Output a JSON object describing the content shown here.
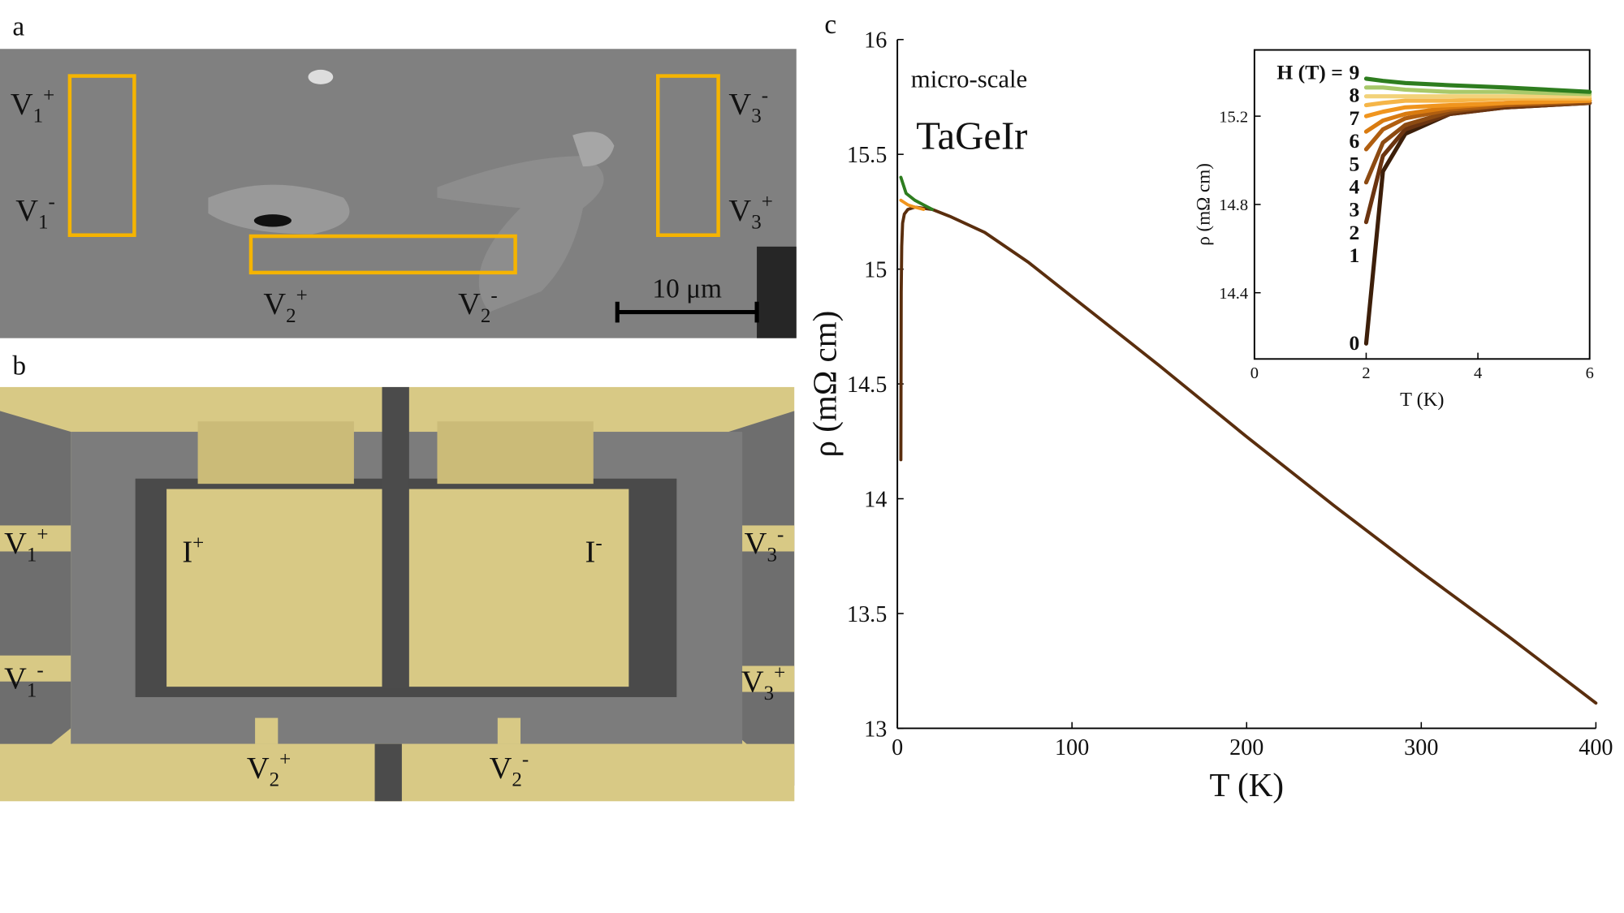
{
  "panels": {
    "a": {
      "label": "a",
      "scale_bar": "10 μm",
      "labels": [
        {
          "text": "V",
          "sub": "1",
          "sup": "+"
        },
        {
          "text": "V",
          "sub": "1",
          "sup": "-"
        },
        {
          "text": "V",
          "sub": "3",
          "sup": "-"
        },
        {
          "text": "V",
          "sub": "3",
          "sup": "+"
        },
        {
          "text": "V",
          "sub": "2",
          "sup": "+"
        },
        {
          "text": "V",
          "sub": "2",
          "sup": "-"
        }
      ]
    },
    "b": {
      "label": "b",
      "labels": [
        {
          "text": "V",
          "sub": "1",
          "sup": "+"
        },
        {
          "text": "I",
          "sup": "+"
        },
        {
          "text": "I",
          "sup": "-"
        },
        {
          "text": "V",
          "sub": "3",
          "sup": "-"
        },
        {
          "text": "V",
          "sub": "1",
          "sup": "-"
        },
        {
          "text": "V",
          "sub": "3",
          "sup": "+"
        },
        {
          "text": "V",
          "sub": "2",
          "sup": "+"
        },
        {
          "text": "V",
          "sub": "2",
          "sup": "-"
        }
      ]
    }
  },
  "chart_data": [
    {
      "type": "line",
      "panel_label": "c",
      "xlabel": "T (K)",
      "ylabel": "ρ (mΩ cm)",
      "annotations": [
        "micro-scale",
        "TaGeIr"
      ],
      "xlim": [
        0,
        400
      ],
      "ylim": [
        13,
        16
      ],
      "xticks": [
        0,
        100,
        200,
        300,
        400
      ],
      "yticks": [
        13,
        13.5,
        14,
        14.5,
        15,
        15.5,
        16
      ],
      "series": [
        {
          "color": "#5a2e0e",
          "x": [
            2,
            2.2,
            2.5,
            3,
            4,
            6,
            10,
            20,
            30,
            50,
            75,
            100,
            150,
            200,
            250,
            300,
            350,
            400
          ],
          "values": [
            14.17,
            14.9,
            15.1,
            15.2,
            15.24,
            15.26,
            15.27,
            15.26,
            15.23,
            15.16,
            15.03,
            14.88,
            14.58,
            14.27,
            13.97,
            13.68,
            13.4,
            13.11
          ]
        },
        {
          "color": "#f0951e",
          "x": [
            2,
            4,
            6,
            10,
            15
          ],
          "values": [
            15.3,
            15.29,
            15.28,
            15.27,
            15.26
          ]
        },
        {
          "color": "#2e7d1f",
          "x": [
            2,
            5,
            10,
            15,
            20
          ],
          "values": [
            15.4,
            15.33,
            15.3,
            15.28,
            15.26
          ]
        }
      ]
    },
    {
      "type": "line",
      "xlabel": "T (K)",
      "ylabel": "ρ (mΩ cm)",
      "legend_title": "H (T) =",
      "xlim": [
        0,
        6
      ],
      "ylim": [
        14.1,
        15.5
      ],
      "xticks": [
        0,
        2,
        4,
        6
      ],
      "yticks": [
        14.4,
        14.8,
        15.2
      ],
      "series": [
        {
          "name": "0",
          "color": "#3d1f0a",
          "x": [
            2,
            2.3,
            2.7,
            3.5,
            4.5,
            6
          ],
          "values": [
            14.17,
            14.95,
            15.12,
            15.21,
            15.24,
            15.26
          ]
        },
        {
          "name": "1",
          "color": "#6b3410",
          "x": [
            2,
            2.3,
            2.7,
            3.5,
            4.5,
            6
          ],
          "values": [
            14.72,
            15.02,
            15.14,
            15.21,
            15.24,
            15.26
          ]
        },
        {
          "name": "2",
          "color": "#8c4a12",
          "x": [
            2,
            2.3,
            2.7,
            3.5,
            4.5,
            6
          ],
          "values": [
            14.9,
            15.08,
            15.16,
            15.22,
            15.25,
            15.26
          ]
        },
        {
          "name": "3",
          "color": "#b05e10",
          "x": [
            2,
            2.3,
            2.7,
            3.5,
            4.5,
            6
          ],
          "values": [
            15.05,
            15.14,
            15.19,
            15.23,
            15.25,
            15.27
          ]
        },
        {
          "name": "4",
          "color": "#d97b10",
          "x": [
            2,
            2.3,
            2.7,
            3.5,
            4.5,
            6
          ],
          "values": [
            15.13,
            15.18,
            15.21,
            15.24,
            15.26,
            15.27
          ]
        },
        {
          "name": "5",
          "color": "#f0951e",
          "x": [
            2,
            2.3,
            2.7,
            3.5,
            4.5,
            6
          ],
          "values": [
            15.2,
            15.22,
            15.24,
            15.25,
            15.26,
            15.27
          ]
        },
        {
          "name": "6",
          "color": "#f5b548",
          "x": [
            2,
            2.3,
            2.7,
            3.5,
            4.5,
            6
          ],
          "values": [
            15.25,
            15.26,
            15.27,
            15.27,
            15.28,
            15.28
          ]
        },
        {
          "name": "7",
          "color": "#f2d27a",
          "x": [
            2,
            2.3,
            2.7,
            3.5,
            4.5,
            6
          ],
          "values": [
            15.29,
            15.29,
            15.29,
            15.29,
            15.29,
            15.29
          ]
        },
        {
          "name": "8",
          "color": "#a9c96a",
          "x": [
            2,
            2.3,
            2.7,
            3.5,
            4.5,
            6
          ],
          "values": [
            15.33,
            15.33,
            15.32,
            15.31,
            15.31,
            15.3
          ]
        },
        {
          "name": "9",
          "color": "#2e7d1f",
          "x": [
            2,
            2.3,
            2.7,
            3.5,
            4.5,
            6
          ],
          "values": [
            15.37,
            15.36,
            15.35,
            15.34,
            15.33,
            15.31
          ]
        }
      ]
    }
  ]
}
